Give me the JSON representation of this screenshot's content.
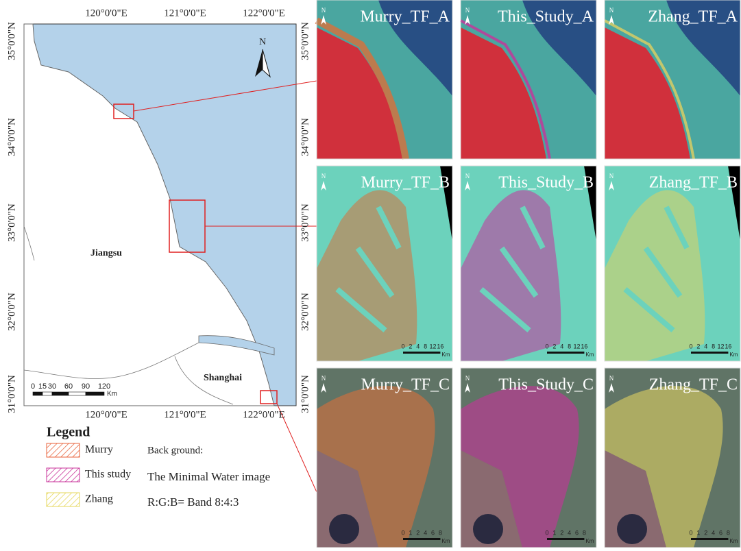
{
  "map": {
    "lon_labels": [
      "120°0'0\"E",
      "121°0'0\"E",
      "122°0'0\"E"
    ],
    "lat_labels": [
      "35°0'0\"N",
      "34°0'0\"N",
      "33°0'0\"N",
      "32°0'0\"N",
      "31°0'0\"N"
    ],
    "north": "N",
    "regions": [
      "Jiangsu",
      "Shanghai"
    ],
    "scale": {
      "ticks": [
        "0",
        "15",
        "30",
        "60",
        "90",
        "120"
      ],
      "unit": "Km"
    }
  },
  "legend": {
    "title": "Legend",
    "items": [
      "Murry",
      "This study",
      "Zhang"
    ]
  },
  "background": [
    "Back ground:",
    "The Minimal Water image",
    "R:G:B= Band 8:4:3"
  ],
  "panels": [
    {
      "titles": [
        "Murry_TF_A",
        "This_Study_A",
        "Zhang_TF_A"
      ]
    },
    {
      "titles": [
        "Murry_TF_B",
        "This_Study_B",
        "Zhang_TF_B"
      ],
      "scale": [
        "0",
        "2",
        "4",
        "8",
        "12",
        "16"
      ],
      "unit": "Km"
    },
    {
      "titles": [
        "Murry_TF_C",
        "This_Study_C",
        "Zhang_TF_C"
      ],
      "scale": [
        "0",
        "1",
        "2",
        "4",
        "6",
        "8"
      ],
      "unit": "Km"
    }
  ]
}
